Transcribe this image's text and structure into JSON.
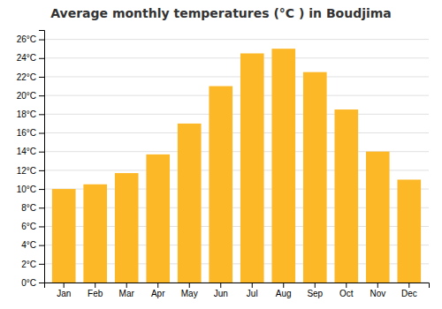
{
  "chart_data": {
    "type": "bar",
    "title": "Average monthly temperatures (°C ) in Boudjima",
    "categories": [
      "Jan",
      "Feb",
      "Mar",
      "Apr",
      "May",
      "Jun",
      "Jul",
      "Aug",
      "Sep",
      "Oct",
      "Nov",
      "Dec"
    ],
    "values": [
      10.0,
      10.5,
      11.7,
      13.7,
      17.0,
      21.0,
      24.5,
      25.0,
      22.5,
      18.5,
      14.0,
      11.0
    ],
    "color": "#FDB827",
    "ylim": [
      0,
      27
    ],
    "yticks": [
      {
        "value": 0,
        "label": "0°C"
      },
      {
        "value": 2,
        "label": "2°C"
      },
      {
        "value": 4,
        "label": "4°C"
      },
      {
        "value": 6,
        "label": "6°C"
      },
      {
        "value": 8,
        "label": "8°C"
      },
      {
        "value": 10,
        "label": "10°C"
      },
      {
        "value": 12,
        "label": "12°C"
      },
      {
        "value": 14,
        "label": "14°C"
      },
      {
        "value": 16,
        "label": "16°C"
      },
      {
        "value": 18,
        "label": "18°C"
      },
      {
        "value": 20,
        "label": "20°C"
      },
      {
        "value": 22,
        "label": "22°C"
      },
      {
        "value": 24,
        "label": "24°C"
      },
      {
        "value": 26,
        "label": "26°C"
      }
    ],
    "grid": true
  }
}
